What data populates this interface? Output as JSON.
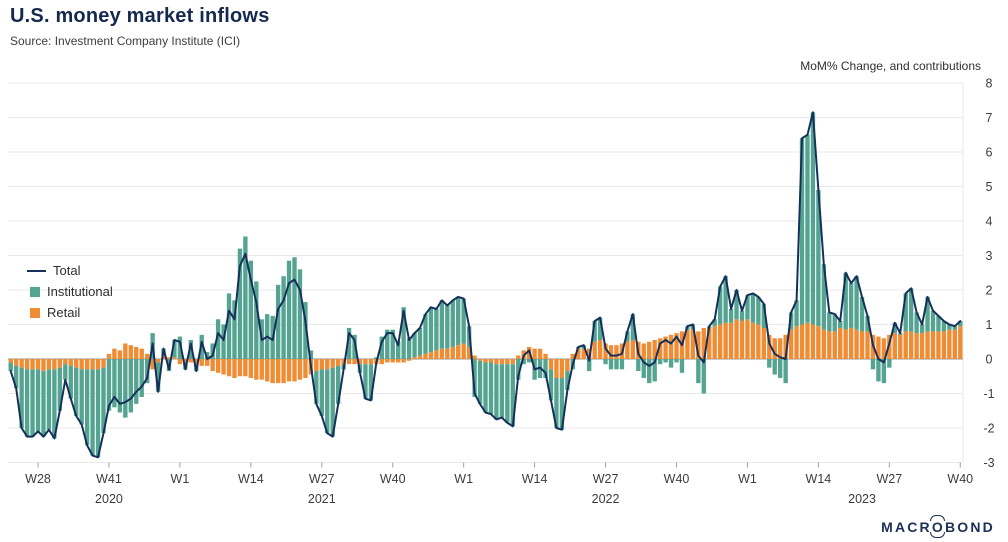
{
  "page": {
    "title": "U.S. money market inflows",
    "source": "Source: Investment Company Institute (ICI)",
    "annotation": "MoM% Change, and contributions"
  },
  "legend": {
    "total": "Total",
    "institutional": "Institutional",
    "retail": "Retail"
  },
  "logo": {
    "pre": "MACR",
    "o": "O",
    "post": "BOND"
  },
  "chart_data": {
    "type": "bar",
    "subtype": "stacked-bars-with-line",
    "title": "U.S. money market inflows",
    "ylabel": "MoM% Change, and contributions",
    "x_start": "2020-W23",
    "x_end": "2023-W40",
    "ylim": [
      -3,
      8
    ],
    "grid": true,
    "legend_position": "top-left",
    "y_ticks": [
      8,
      7,
      6,
      5,
      4,
      3,
      2,
      1,
      0,
      -1,
      -2,
      -3
    ],
    "x_ticks": [
      {
        "label": "W28",
        "index": 5
      },
      {
        "label": "W41",
        "index": 18
      },
      {
        "label": "W1",
        "index": 31
      },
      {
        "label": "W14",
        "index": 44
      },
      {
        "label": "W27",
        "index": 57
      },
      {
        "label": "W40",
        "index": 70
      },
      {
        "label": "W1",
        "index": 83
      },
      {
        "label": "W14",
        "index": 96
      },
      {
        "label": "W27",
        "index": 109
      },
      {
        "label": "W40",
        "index": 122
      },
      {
        "label": "W1",
        "index": 135
      },
      {
        "label": "W14",
        "index": 148
      },
      {
        "label": "W27",
        "index": 161
      },
      {
        "label": "W40",
        "index": 174
      }
    ],
    "year_labels": [
      {
        "label": "2020",
        "index": 18
      },
      {
        "label": "2021",
        "index": 57
      },
      {
        "label": "2022",
        "index": 109
      },
      {
        "label": "2023",
        "index": 156
      }
    ],
    "colors": {
      "grid": "#e9e9ec",
      "zero_line": "#909090",
      "axis_text": "#3c3c3c",
      "tick": "#9f9f9f"
    },
    "series": [
      {
        "name": "Total",
        "type": "line",
        "color": "#16305c",
        "values": [
          -0.35,
          -0.85,
          -2.0,
          -2.25,
          -2.25,
          -2.1,
          -2.25,
          -2.05,
          -2.3,
          -1.5,
          -0.6,
          -1.15,
          -1.65,
          -1.9,
          -2.5,
          -2.8,
          -2.85,
          -2.15,
          -1.35,
          -1.1,
          -1.3,
          -1.25,
          -1.15,
          -0.95,
          -0.8,
          -0.55,
          0.45,
          -0.95,
          0.3,
          -0.3,
          0.55,
          0.5,
          -0.3,
          0.45,
          -0.35,
          0.5,
          0.0,
          0.1,
          0.75,
          0.55,
          1.4,
          1.15,
          2.7,
          3.05,
          2.3,
          1.65,
          0.55,
          0.65,
          0.55,
          1.45,
          1.7,
          2.2,
          2.3,
          2.0,
          1.1,
          -0.2,
          -1.3,
          -1.65,
          -2.15,
          -2.25,
          -1.3,
          -0.3,
          0.75,
          0.55,
          -0.4,
          -1.15,
          -1.2,
          -0.1,
          0.5,
          0.75,
          0.75,
          0.4,
          1.4,
          0.55,
          0.75,
          0.9,
          1.3,
          1.5,
          1.45,
          1.7,
          1.55,
          1.7,
          1.8,
          1.75,
          0.95,
          -1.0,
          -1.3,
          -1.55,
          -1.6,
          -1.75,
          -1.7,
          -1.85,
          -1.95,
          -0.5,
          0.1,
          0.25,
          -0.3,
          -0.25,
          -0.4,
          -1.2,
          -2.0,
          -2.05,
          -0.9,
          -0.15,
          0.35,
          0.4,
          -0.05,
          1.1,
          1.2,
          0.3,
          0.1,
          0.1,
          0.15,
          0.8,
          1.3,
          0.15,
          -0.1,
          -0.2,
          -0.1,
          0.45,
          0.55,
          0.45,
          0.65,
          0.4,
          0.95,
          1.0,
          0.1,
          -0.1,
          0.95,
          1.15,
          2.1,
          2.4,
          1.45,
          2.0,
          1.4,
          1.85,
          1.9,
          1.8,
          1.6,
          0.45,
          0.15,
          0.05,
          0.0,
          1.35,
          1.7,
          6.4,
          6.5,
          7.15,
          4.9,
          2.75,
          1.35,
          1.3,
          1.1,
          2.5,
          2.2,
          2.4,
          1.8,
          1.25,
          0.4,
          0.0,
          -0.1,
          0.45,
          1.05,
          0.75,
          1.9,
          2.05,
          1.35,
          1.0,
          1.8,
          1.4,
          1.25,
          1.1,
          1.0,
          0.95,
          1.1
        ]
      },
      {
        "name": "Institutional",
        "type": "bar",
        "color": "#55a492",
        "values": [
          -0.25,
          -0.65,
          -1.75,
          -1.95,
          -1.95,
          -1.8,
          -1.9,
          -1.75,
          -2.0,
          -1.25,
          -0.45,
          -0.95,
          -1.4,
          -1.6,
          -2.2,
          -2.5,
          -2.55,
          -1.9,
          -1.5,
          -1.4,
          -1.55,
          -1.7,
          -1.55,
          -1.3,
          -1.1,
          -0.7,
          0.75,
          -0.85,
          0.2,
          -0.35,
          0.5,
          0.65,
          -0.2,
          0.55,
          -0.2,
          0.7,
          0.2,
          0.45,
          1.15,
          1.0,
          1.9,
          1.7,
          3.2,
          3.55,
          2.85,
          2.25,
          1.15,
          1.3,
          1.25,
          2.15,
          2.4,
          2.85,
          2.95,
          2.6,
          1.65,
          0.25,
          -0.95,
          -1.35,
          -1.85,
          -2.0,
          -1.1,
          -0.15,
          0.9,
          0.7,
          -0.25,
          -1.0,
          -1.05,
          0.05,
          0.65,
          0.85,
          0.85,
          0.5,
          1.5,
          0.6,
          0.7,
          0.8,
          1.15,
          1.3,
          1.2,
          1.4,
          1.25,
          1.35,
          1.4,
          1.3,
          0.6,
          -1.1,
          -1.25,
          -1.45,
          -1.5,
          -1.6,
          -1.55,
          -1.7,
          -1.8,
          -0.6,
          -0.15,
          -0.1,
          -0.6,
          -0.55,
          -0.55,
          -0.9,
          -1.45,
          -1.5,
          -0.55,
          -0.3,
          0.05,
          0.1,
          -0.35,
          0.6,
          0.65,
          -0.15,
          -0.3,
          -0.3,
          -0.3,
          0.3,
          0.75,
          -0.35,
          -0.55,
          -0.7,
          -0.65,
          -0.15,
          -0.1,
          -0.25,
          -0.1,
          -0.4,
          0.1,
          0.15,
          -0.7,
          -1.0,
          0.05,
          0.2,
          1.1,
          1.35,
          0.4,
          0.85,
          0.3,
          0.7,
          0.85,
          0.8,
          0.7,
          -0.25,
          -0.45,
          -0.55,
          -0.7,
          0.5,
          0.75,
          5.4,
          5.45,
          6.15,
          3.95,
          1.9,
          0.55,
          0.5,
          0.2,
          1.65,
          1.3,
          1.55,
          1.0,
          0.45,
          -0.3,
          -0.65,
          -0.7,
          -0.25,
          0.3,
          0.05,
          1.1,
          1.25,
          0.6,
          0.25,
          1.0,
          0.6,
          0.45,
          0.3,
          0.15,
          0.1,
          0.15
        ]
      },
      {
        "name": "Retail",
        "type": "bar",
        "color": "#f08c33",
        "values": [
          -0.1,
          -0.2,
          -0.25,
          -0.3,
          -0.3,
          -0.3,
          -0.35,
          -0.3,
          -0.3,
          -0.25,
          -0.15,
          -0.2,
          -0.25,
          -0.3,
          -0.3,
          -0.3,
          -0.3,
          -0.25,
          0.15,
          0.3,
          0.25,
          0.45,
          0.4,
          0.35,
          0.3,
          0.15,
          -0.3,
          -0.1,
          0.1,
          0.05,
          0.05,
          -0.15,
          -0.1,
          -0.1,
          -0.15,
          -0.2,
          -0.2,
          -0.35,
          -0.4,
          -0.45,
          -0.5,
          -0.55,
          -0.5,
          -0.5,
          -0.55,
          -0.6,
          -0.6,
          -0.65,
          -0.7,
          -0.7,
          -0.7,
          -0.65,
          -0.65,
          -0.6,
          -0.55,
          -0.45,
          -0.35,
          -0.3,
          -0.3,
          -0.25,
          -0.2,
          -0.15,
          -0.15,
          -0.15,
          -0.15,
          -0.15,
          -0.15,
          -0.15,
          -0.15,
          -0.1,
          -0.1,
          -0.1,
          -0.1,
          -0.05,
          0.05,
          0.1,
          0.15,
          0.2,
          0.25,
          0.3,
          0.3,
          0.35,
          0.4,
          0.45,
          0.35,
          0.1,
          -0.05,
          -0.1,
          -0.1,
          -0.15,
          -0.15,
          -0.15,
          -0.15,
          0.1,
          0.25,
          0.35,
          0.3,
          0.3,
          0.15,
          -0.3,
          -0.55,
          -0.55,
          -0.35,
          0.15,
          0.3,
          0.3,
          0.3,
          0.5,
          0.55,
          0.45,
          0.4,
          0.4,
          0.45,
          0.5,
          0.55,
          0.5,
          0.45,
          0.5,
          0.55,
          0.6,
          0.65,
          0.7,
          0.75,
          0.8,
          0.85,
          0.85,
          0.8,
          0.9,
          0.9,
          0.95,
          1.0,
          1.05,
          1.05,
          1.15,
          1.1,
          1.15,
          1.05,
          1.0,
          0.9,
          0.7,
          0.6,
          0.6,
          0.7,
          0.85,
          0.95,
          1.0,
          1.05,
          1.0,
          0.95,
          0.85,
          0.8,
          0.8,
          0.9,
          0.85,
          0.9,
          0.85,
          0.8,
          0.8,
          0.7,
          0.65,
          0.6,
          0.7,
          0.75,
          0.7,
          0.8,
          0.8,
          0.75,
          0.75,
          0.8,
          0.8,
          0.8,
          0.8,
          0.85,
          0.85,
          0.95
        ]
      }
    ]
  }
}
